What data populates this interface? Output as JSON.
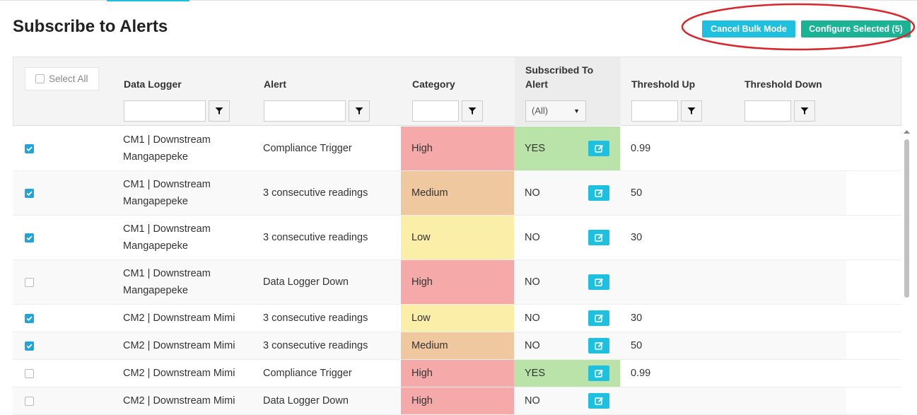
{
  "header": {
    "title": "Subscribe to Alerts",
    "buttons": [
      "Cancel Bulk Mode",
      "Configure Selected (5)"
    ]
  },
  "table": {
    "select_all": "Select All",
    "columns": [
      "Data Logger",
      "Alert",
      "Category",
      "Subscribed To Alert",
      "Threshold Up",
      "Threshold Down"
    ],
    "subscribed_filter": "(All)",
    "rows": [
      {
        "checked": true,
        "logger": "CM1 | Downstream Mangapepeke",
        "alert": "Compliance Trigger",
        "category": "High",
        "subscribed": "YES",
        "threshold_up": "0.99"
      },
      {
        "checked": true,
        "logger": "CM1 | Downstream Mangapepeke",
        "alert": "3 consecutive readings",
        "category": "Medium",
        "subscribed": "NO",
        "threshold_up": "50"
      },
      {
        "checked": true,
        "logger": "CM1 | Downstream Mangapepeke",
        "alert": "3 consecutive readings",
        "category": "Low",
        "subscribed": "NO",
        "threshold_up": "30"
      },
      {
        "checked": false,
        "logger": "CM1 | Downstream Mangapepeke",
        "alert": "Data Logger Down",
        "category": "High",
        "subscribed": "NO"
      },
      {
        "checked": true,
        "logger": "CM2 | Downstream Mimi",
        "alert": "3 consecutive readings",
        "category": "Low",
        "subscribed": "NO",
        "threshold_up": "30"
      },
      {
        "checked": true,
        "logger": "CM2 | Downstream Mimi",
        "alert": "3 consecutive readings",
        "category": "Medium",
        "subscribed": "NO",
        "threshold_up": "50"
      },
      {
        "checked": false,
        "logger": "CM2 | Downstream Mimi",
        "alert": "Compliance Trigger",
        "category": "High",
        "subscribed": "YES",
        "threshold_up": "0.99"
      },
      {
        "checked": false,
        "logger": "CM2 | Downstream Mimi",
        "alert": "Data Logger Down",
        "category": "High",
        "subscribed": "NO"
      }
    ]
  }
}
